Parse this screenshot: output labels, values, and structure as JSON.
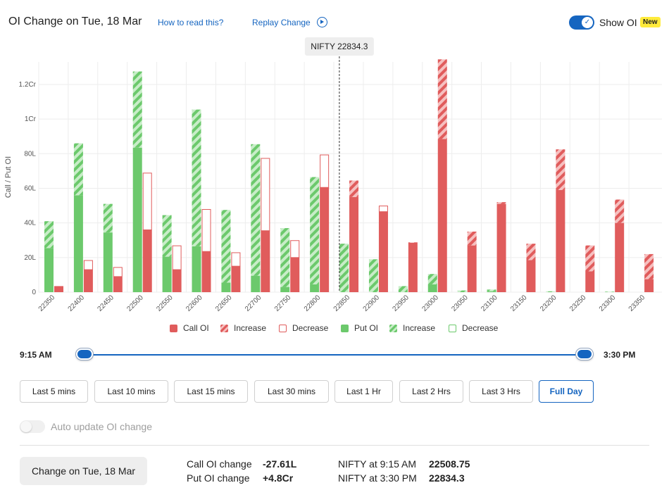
{
  "header": {
    "title": "OI Change on Tue, 18 Mar",
    "how_link": "How to read this?",
    "replay_link": "Replay Change",
    "show_oi_label": "Show OI",
    "new_badge": "New"
  },
  "colors": {
    "call": "#e05c5c",
    "call_light": "#f09a9a",
    "put": "#6cc96c",
    "put_light": "#aee3ae",
    "accent": "#1565c0"
  },
  "chart_data": {
    "type": "bar",
    "ylabel": "Call / Put OI",
    "y_ticks": [
      "0",
      "20L",
      "40L",
      "60L",
      "80L",
      "1Cr",
      "1.2Cr"
    ],
    "y_tick_values": [
      0,
      20,
      40,
      60,
      80,
      100,
      120
    ],
    "ylim": [
      0,
      133
    ],
    "unit": "Lakh",
    "grid": true,
    "spot_marker": {
      "label": "NIFTY 22834.3",
      "value": 22834.3
    },
    "categories": [
      "22350",
      "22400",
      "22450",
      "22500",
      "22550",
      "22600",
      "22650",
      "22700",
      "22750",
      "22800",
      "22850",
      "22900",
      "22950",
      "23000",
      "23050",
      "23100",
      "23150",
      "23200",
      "23250",
      "23300",
      "23350"
    ],
    "series": [
      {
        "name": "Put OI",
        "base": [
          25.5,
          56,
          34.5,
          83.5,
          20.5,
          26.5,
          5.5,
          9.5,
          3,
          4.5,
          0,
          0,
          0,
          4.5,
          0,
          0.5,
          0,
          0,
          0,
          0,
          0
        ],
        "change": [
          15.5,
          30,
          16.5,
          44,
          24,
          79,
          42,
          76,
          34,
          62,
          28,
          19,
          3.5,
          6,
          1,
          1,
          0,
          0.5,
          0,
          0.3,
          0
        ]
      },
      {
        "name": "Call OI",
        "base": [
          3.5,
          13,
          9,
          36,
          13,
          23.5,
          15,
          35.5,
          20,
          60.5,
          55,
          46.5,
          28.5,
          88.5,
          27,
          51,
          18.5,
          59,
          12,
          40,
          7.5
        ],
        "change": [
          0,
          5.5,
          5.5,
          33,
          14,
          24.5,
          8,
          42,
          10,
          19,
          9.5,
          3.5,
          0.3,
          46,
          8,
          1,
          9.5,
          23.5,
          15,
          13.5,
          14.5
        ],
        "change_type": [
          "increase",
          "decrease",
          "decrease",
          "decrease",
          "decrease",
          "decrease",
          "decrease",
          "decrease",
          "decrease",
          "decrease",
          "increase",
          "decrease",
          "increase",
          "increase",
          "increase",
          "increase",
          "increase",
          "increase",
          "increase",
          "increase",
          "increase"
        ]
      }
    ],
    "legend": [
      "Call OI",
      "Increase",
      "Decrease",
      "Put OI",
      "Increase",
      "Decrease"
    ]
  },
  "slider": {
    "start": "9:15 AM",
    "end": "3:30 PM"
  },
  "ranges": [
    "Last 5 mins",
    "Last 10 mins",
    "Last 15 mins",
    "Last 30 mins",
    "Last 1 Hr",
    "Last 2 Hrs",
    "Last 3 Hrs",
    "Full Day"
  ],
  "active_range": "Full Day",
  "auto_update_label": "Auto update OI change",
  "footer": {
    "change_button": "Change on Tue, 18 Mar",
    "call_label": "Call OI change",
    "call_value": "-27.61L",
    "put_label": "Put OI change",
    "put_value": "+4.8Cr",
    "nifty_open_label": "NIFTY at 9:15 AM",
    "nifty_open_value": "22508.75",
    "nifty_close_label": "NIFTY at 3:30 PM",
    "nifty_close_value": "22834.3"
  }
}
